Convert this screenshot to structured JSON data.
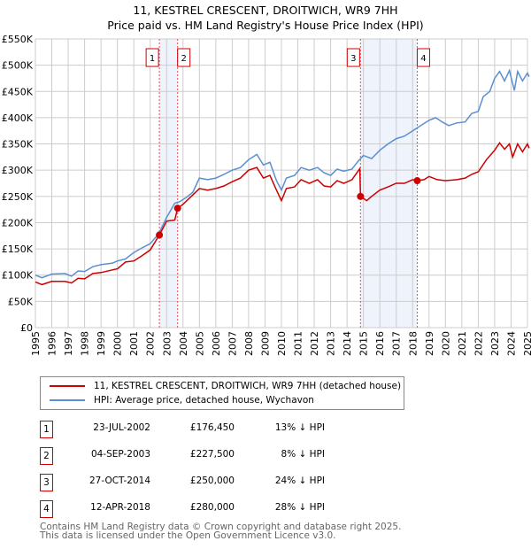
{
  "chart_data": {
    "type": "line",
    "title": "11, KESTREL CRESCENT, DROITWICH, WR9 7HH",
    "subtitle": "Price paid vs. HM Land Registry's House Price Index (HPI)",
    "xlim": [
      1995,
      2025.1
    ],
    "ylim": [
      0,
      550000
    ],
    "x_ticks": [
      "1995",
      "1996",
      "1997",
      "1998",
      "1999",
      "2000",
      "2001",
      "2002",
      "2003",
      "2004",
      "2005",
      "2006",
      "2007",
      "2008",
      "2009",
      "2010",
      "2011",
      "2012",
      "2013",
      "2014",
      "2015",
      "2016",
      "2017",
      "2018",
      "2019",
      "2020",
      "2021",
      "2022",
      "2023",
      "2024",
      "2025"
    ],
    "y_ticks": [
      "£0",
      "£50K",
      "£100K",
      "£150K",
      "£200K",
      "£250K",
      "£300K",
      "£350K",
      "£400K",
      "£450K",
      "£500K",
      "£550K"
    ],
    "grid": true,
    "series": [
      {
        "name": "11, KESTREL CRESCENT, DROITWICH, WR9 7HH (detached house)",
        "color": "#cc0000",
        "points": [
          [
            1995,
            87
          ],
          [
            1995.4,
            82
          ],
          [
            1996,
            88
          ],
          [
            1996.8,
            88
          ],
          [
            1997.2,
            85
          ],
          [
            1997.6,
            94
          ],
          [
            1998,
            93
          ],
          [
            1998.5,
            103
          ],
          [
            1999,
            105
          ],
          [
            1999.7,
            110
          ],
          [
            2000,
            112
          ],
          [
            2000.5,
            125
          ],
          [
            2001,
            127
          ],
          [
            2001.5,
            137
          ],
          [
            2002,
            148
          ],
          [
            2002.56,
            176.45
          ],
          [
            2003,
            203
          ],
          [
            2003.5,
            205
          ],
          [
            2003.67,
            227.5
          ],
          [
            2004,
            235
          ],
          [
            2004.5,
            250
          ],
          [
            2005,
            265
          ],
          [
            2005.5,
            262
          ],
          [
            2006,
            265
          ],
          [
            2006.5,
            270
          ],
          [
            2007,
            278
          ],
          [
            2007.5,
            285
          ],
          [
            2008,
            300
          ],
          [
            2008.5,
            305
          ],
          [
            2008.9,
            285
          ],
          [
            2009.3,
            290
          ],
          [
            2009.7,
            262
          ],
          [
            2010,
            242
          ],
          [
            2010.3,
            265
          ],
          [
            2010.8,
            268
          ],
          [
            2011.2,
            282
          ],
          [
            2011.7,
            275
          ],
          [
            2012.2,
            282
          ],
          [
            2012.6,
            270
          ],
          [
            2013,
            268
          ],
          [
            2013.4,
            280
          ],
          [
            2013.8,
            275
          ],
          [
            2014.3,
            282
          ],
          [
            2014.78,
            303
          ],
          [
            2014.82,
            250
          ],
          [
            2015.2,
            242
          ],
          [
            2015.5,
            250
          ],
          [
            2016,
            262
          ],
          [
            2016.5,
            268
          ],
          [
            2017,
            275
          ],
          [
            2017.5,
            275
          ],
          [
            2018,
            282
          ],
          [
            2018.28,
            280
          ],
          [
            2018.7,
            282
          ],
          [
            2019,
            288
          ],
          [
            2019.5,
            282
          ],
          [
            2020,
            280
          ],
          [
            2020.7,
            282
          ],
          [
            2021.2,
            285
          ],
          [
            2021.6,
            292
          ],
          [
            2022,
            297
          ],
          [
            2022.5,
            320
          ],
          [
            2023,
            338
          ],
          [
            2023.3,
            352
          ],
          [
            2023.6,
            340
          ],
          [
            2023.9,
            350
          ],
          [
            2024.1,
            325
          ],
          [
            2024.4,
            350
          ],
          [
            2024.7,
            335
          ],
          [
            2025,
            350
          ],
          [
            2025.1,
            342
          ]
        ]
      },
      {
        "name": "HPI: Average price, detached house, Wychavon",
        "color": "#5b8fd1",
        "points": [
          [
            1995,
            100
          ],
          [
            1995.4,
            95
          ],
          [
            1996,
            102
          ],
          [
            1996.8,
            103
          ],
          [
            1997.2,
            98
          ],
          [
            1997.6,
            108
          ],
          [
            1998,
            107
          ],
          [
            1998.5,
            116
          ],
          [
            1999,
            120
          ],
          [
            1999.7,
            123
          ],
          [
            2000,
            127
          ],
          [
            2000.5,
            131
          ],
          [
            2001,
            143
          ],
          [
            2001.5,
            152
          ],
          [
            2002,
            160
          ],
          [
            2002.5,
            178
          ],
          [
            2003,
            210
          ],
          [
            2003.5,
            237
          ],
          [
            2003.8,
            240
          ],
          [
            2004.2,
            248
          ],
          [
            2004.6,
            258
          ],
          [
            2005,
            285
          ],
          [
            2005.5,
            282
          ],
          [
            2006,
            285
          ],
          [
            2006.5,
            292
          ],
          [
            2007,
            300
          ],
          [
            2007.5,
            305
          ],
          [
            2008,
            320
          ],
          [
            2008.5,
            330
          ],
          [
            2008.9,
            310
          ],
          [
            2009.3,
            315
          ],
          [
            2009.7,
            280
          ],
          [
            2010,
            262
          ],
          [
            2010.3,
            285
          ],
          [
            2010.8,
            290
          ],
          [
            2011.2,
            305
          ],
          [
            2011.7,
            300
          ],
          [
            2012.2,
            305
          ],
          [
            2012.6,
            295
          ],
          [
            2013,
            290
          ],
          [
            2013.4,
            302
          ],
          [
            2013.8,
            298
          ],
          [
            2014.3,
            302
          ],
          [
            2014.7,
            318
          ],
          [
            2015,
            328
          ],
          [
            2015.5,
            322
          ],
          [
            2016,
            338
          ],
          [
            2016.5,
            350
          ],
          [
            2017,
            360
          ],
          [
            2017.5,
            365
          ],
          [
            2018,
            375
          ],
          [
            2018.5,
            385
          ],
          [
            2019,
            395
          ],
          [
            2019.4,
            400
          ],
          [
            2019.8,
            392
          ],
          [
            2020.2,
            385
          ],
          [
            2020.7,
            390
          ],
          [
            2021.2,
            392
          ],
          [
            2021.6,
            408
          ],
          [
            2022,
            412
          ],
          [
            2022.3,
            440
          ],
          [
            2022.7,
            450
          ],
          [
            2023,
            475
          ],
          [
            2023.3,
            488
          ],
          [
            2023.6,
            470
          ],
          [
            2023.9,
            490
          ],
          [
            2024.2,
            452
          ],
          [
            2024.4,
            488
          ],
          [
            2024.7,
            470
          ],
          [
            2025,
            485
          ],
          [
            2025.1,
            478
          ]
        ]
      }
    ],
    "sales": [
      {
        "label": "1",
        "x": 2002.56,
        "value": 176450,
        "date": "23-JUL-2002",
        "price": "£176,450",
        "hpi": "13% ↓ HPI"
      },
      {
        "label": "2",
        "x": 2003.67,
        "value": 227500,
        "date": "04-SEP-2003",
        "price": "£227,500",
        "hpi": "8% ↓ HPI"
      },
      {
        "label": "3",
        "x": 2014.82,
        "value": 250000,
        "date": "27-OCT-2014",
        "price": "£250,000",
        "hpi": "24% ↓ HPI"
      },
      {
        "label": "4",
        "x": 2018.28,
        "value": 280000,
        "date": "12-APR-2018",
        "price": "£280,000",
        "hpi": "28% ↓ HPI"
      }
    ],
    "shaded_ranges": [
      [
        2002.56,
        2003.67
      ],
      [
        2014.82,
        2018.28
      ]
    ]
  },
  "footer": {
    "line1": "Contains HM Land Registry data © Crown copyright and database right 2025.",
    "line2": "This data is licensed under the Open Government Licence v3.0."
  }
}
